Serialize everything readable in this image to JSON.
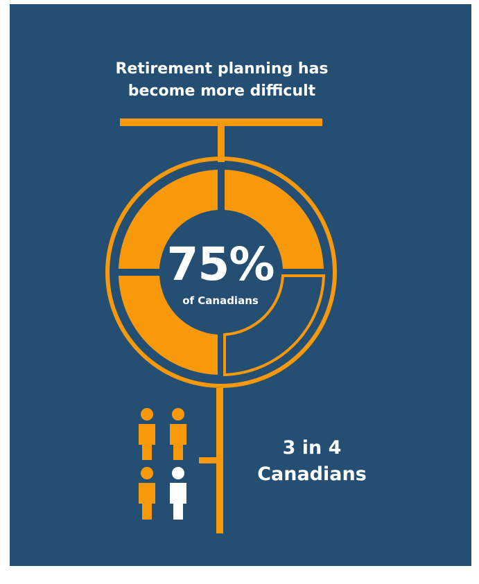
{
  "headline": {
    "line1": "Retirement planning has",
    "line2": "become more difficult"
  },
  "stat": {
    "percent": "75%",
    "label": "of Canadians",
    "value": 0.75
  },
  "ratio": {
    "line1": "3 in 4",
    "line2": "Canadians",
    "filled": 3,
    "total": 4
  },
  "colors": {
    "background": "#244f72",
    "accent": "#f7990a",
    "highlight": "#ffffff"
  },
  "icons": [
    "person-icon"
  ]
}
